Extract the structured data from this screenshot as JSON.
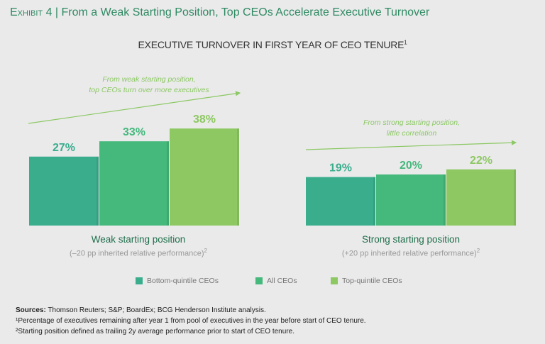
{
  "exhibit": {
    "label": "Exhibit 4",
    "title": "From a Weak Starting Position, Top CEOs Accelerate Executive Turnover"
  },
  "chart_data": {
    "type": "bar",
    "title": "EXECUTIVE TURNOVER IN FIRST YEAR OF CEO TENURE",
    "title_sup": "1",
    "categories": [
      "Weak starting position",
      "Strong starting position"
    ],
    "category_subtitles": [
      "(–20 pp inherited relative performance)",
      "(+20 pp inherited relative performance)"
    ],
    "subtitle_sup": "2",
    "series": [
      {
        "name": "Bottom-quintile CEOs",
        "color": "#3aad8d",
        "values": [
          27,
          19
        ]
      },
      {
        "name": "All CEOs",
        "color": "#45b87b",
        "values": [
          33,
          20
        ]
      },
      {
        "name": "Top-quintile CEOs",
        "color": "#8dc862",
        "values": [
          38,
          22
        ]
      }
    ],
    "value_suffix": "%",
    "ylim": [
      0,
      40
    ],
    "annotations": [
      {
        "text1": "From weak starting position,",
        "text2": "top CEOs turn over more executives"
      },
      {
        "text1": "From strong starting position,",
        "text2": "little correlation"
      }
    ]
  },
  "footer": {
    "sources_label": "Sources:",
    "sources": "Thomson Reuters; S&P; BoardEx; BCG Henderson Institute analysis.",
    "note1": "¹Percentage of executives remaining after year 1 from pool of executives in the year before start of CEO tenure.",
    "note2": "²Starting position defined as trailing 2y average performance prior to start of CEO tenure."
  }
}
